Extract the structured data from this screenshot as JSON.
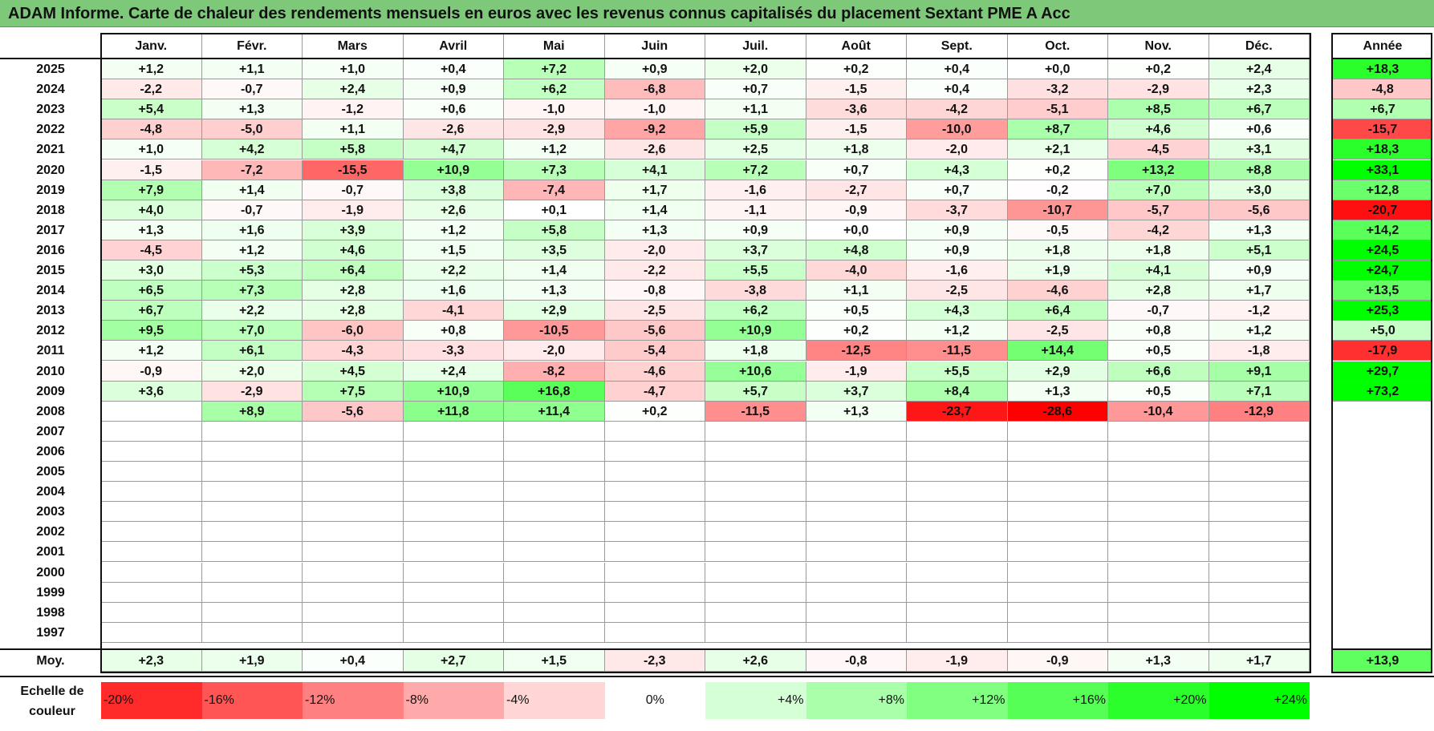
{
  "title": "ADAM Informe. Carte de chaleur des rendements mensuels en euros avec les revenus connus capitalisés du placement Sextant PME A Acc",
  "chart_data": {
    "type": "heatmap",
    "title": "ADAM Informe. Carte de chaleur des rendements mensuels en euros avec les revenus connus capitalisés du placement Sextant PME A Acc",
    "months": [
      "Janv.",
      "Févr.",
      "Mars",
      "Avril",
      "Mai",
      "Juin",
      "Juil.",
      "Août",
      "Sept.",
      "Oct.",
      "Nov.",
      "Déc."
    ],
    "annual_header": "Année",
    "years": [
      "2025",
      "2024",
      "2023",
      "2022",
      "2021",
      "2020",
      "2019",
      "2018",
      "2017",
      "2016",
      "2015",
      "2014",
      "2013",
      "2012",
      "2011",
      "2010",
      "2009",
      "2008",
      "2007",
      "2006",
      "2005",
      "2004",
      "2003",
      "2002",
      "2001",
      "2000",
      "1999",
      "1998",
      "1997"
    ],
    "values": [
      [
        "+1,2",
        "+1,1",
        "+1,0",
        "+0,4",
        "+7,2",
        "+0,9",
        "+2,0",
        "+0,2",
        "+0,4",
        "+0,0",
        "+0,2",
        "+2,4"
      ],
      [
        "-2,2",
        "-0,7",
        "+2,4",
        "+0,9",
        "+6,2",
        "-6,8",
        "+0,7",
        "-1,5",
        "+0,4",
        "-3,2",
        "-2,9",
        "+2,3"
      ],
      [
        "+5,4",
        "+1,3",
        "-1,2",
        "+0,6",
        "-1,0",
        "-1,0",
        "+1,1",
        "-3,6",
        "-4,2",
        "-5,1",
        "+8,5",
        "+6,7"
      ],
      [
        "-4,8",
        "-5,0",
        "+1,1",
        "-2,6",
        "-2,9",
        "-9,2",
        "+5,9",
        "-1,5",
        "-10,0",
        "+8,7",
        "+4,6",
        "+0,6"
      ],
      [
        "+1,0",
        "+4,2",
        "+5,8",
        "+4,7",
        "+1,2",
        "-2,6",
        "+2,5",
        "+1,8",
        "-2,0",
        "+2,1",
        "-4,5",
        "+3,1"
      ],
      [
        "-1,5",
        "-7,2",
        "-15,5",
        "+10,9",
        "+7,3",
        "+4,1",
        "+7,2",
        "+0,7",
        "+4,3",
        "+0,2",
        "+13,2",
        "+8,8"
      ],
      [
        "+7,9",
        "+1,4",
        "-0,7",
        "+3,8",
        "-7,4",
        "+1,7",
        "-1,6",
        "-2,7",
        "+0,7",
        "-0,2",
        "+7,0",
        "+3,0"
      ],
      [
        "+4,0",
        "-0,7",
        "-1,9",
        "+2,6",
        "+0,1",
        "+1,4",
        "-1,1",
        "-0,9",
        "-3,7",
        "-10,7",
        "-5,7",
        "-5,6"
      ],
      [
        "+1,3",
        "+1,6",
        "+3,9",
        "+1,2",
        "+5,8",
        "+1,3",
        "+0,9",
        "+0,0",
        "+0,9",
        "-0,5",
        "-4,2",
        "+1,3"
      ],
      [
        "-4,5",
        "+1,2",
        "+4,6",
        "+1,5",
        "+3,5",
        "-2,0",
        "+3,7",
        "+4,8",
        "+0,9",
        "+1,8",
        "+1,8",
        "+5,1"
      ],
      [
        "+3,0",
        "+5,3",
        "+6,4",
        "+2,2",
        "+1,4",
        "-2,2",
        "+5,5",
        "-4,0",
        "-1,6",
        "+1,9",
        "+4,1",
        "+0,9"
      ],
      [
        "+6,5",
        "+7,3",
        "+2,8",
        "+1,6",
        "+1,3",
        "-0,8",
        "-3,8",
        "+1,1",
        "-2,5",
        "-4,6",
        "+2,8",
        "+1,7"
      ],
      [
        "+6,7",
        "+2,2",
        "+2,8",
        "-4,1",
        "+2,9",
        "-2,5",
        "+6,2",
        "+0,5",
        "+4,3",
        "+6,4",
        "-0,7",
        "-1,2"
      ],
      [
        "+9,5",
        "+7,0",
        "-6,0",
        "+0,8",
        "-10,5",
        "-5,6",
        "+10,9",
        "+0,2",
        "+1,2",
        "-2,5",
        "+0,8",
        "+1,2"
      ],
      [
        "+1,2",
        "+6,1",
        "-4,3",
        "-3,3",
        "-2,0",
        "-5,4",
        "+1,8",
        "-12,5",
        "-11,5",
        "+14,4",
        "+0,5",
        "-1,8"
      ],
      [
        "-0,9",
        "+2,0",
        "+4,5",
        "+2,4",
        "-8,2",
        "-4,6",
        "+10,6",
        "-1,9",
        "+5,5",
        "+2,9",
        "+6,6",
        "+9,1"
      ],
      [
        "+3,6",
        "-2,9",
        "+7,5",
        "+10,9",
        "+16,8",
        "-4,7",
        "+5,7",
        "+3,7",
        "+8,4",
        "+1,3",
        "+0,5",
        "+7,1"
      ],
      [
        "",
        "+8,9",
        "-5,6",
        "+11,8",
        "+11,4",
        "+0,2",
        "-11,5",
        "+1,3",
        "-23,7",
        "-28,6",
        "-10,4",
        "-12,9"
      ],
      [
        "",
        "",
        "",
        "",
        "",
        "",
        "",
        "",
        "",
        "",
        "",
        ""
      ],
      [
        "",
        "",
        "",
        "",
        "",
        "",
        "",
        "",
        "",
        "",
        "",
        ""
      ],
      [
        "",
        "",
        "",
        "",
        "",
        "",
        "",
        "",
        "",
        "",
        "",
        ""
      ],
      [
        "",
        "",
        "",
        "",
        "",
        "",
        "",
        "",
        "",
        "",
        "",
        ""
      ],
      [
        "",
        "",
        "",
        "",
        "",
        "",
        "",
        "",
        "",
        "",
        "",
        ""
      ],
      [
        "",
        "",
        "",
        "",
        "",
        "",
        "",
        "",
        "",
        "",
        "",
        ""
      ],
      [
        "",
        "",
        "",
        "",
        "",
        "",
        "",
        "",
        "",
        "",
        "",
        ""
      ],
      [
        "",
        "",
        "",
        "",
        "",
        "",
        "",
        "",
        "",
        "",
        "",
        ""
      ],
      [
        "",
        "",
        "",
        "",
        "",
        "",
        "",
        "",
        "",
        "",
        "",
        ""
      ],
      [
        "",
        "",
        "",
        "",
        "",
        "",
        "",
        "",
        "",
        "",
        "",
        ""
      ],
      [
        "",
        "",
        "",
        "",
        "",
        "",
        "",
        "",
        "",
        "",
        "",
        ""
      ]
    ],
    "annual": [
      "+18,3",
      "-4,8",
      "+6,7",
      "-15,7",
      "+18,3",
      "+33,1",
      "+12,8",
      "-20,7",
      "+14,2",
      "+24,5",
      "+24,7",
      "+13,5",
      "+25,3",
      "+5,0",
      "-17,9",
      "+29,7",
      "+73,2",
      "",
      "",
      "",
      "",
      "",
      "",
      "",
      "",
      "",
      "",
      "",
      ""
    ],
    "average_label": "Moy.",
    "average": [
      "+2,3",
      "+1,9",
      "+0,4",
      "+2,7",
      "+1,5",
      "-2,3",
      "+2,6",
      "-0,8",
      "-1,9",
      "-0,9",
      "+1,3",
      "+1,7"
    ],
    "average_annual": "+13,9",
    "color_scale": {
      "label": "Echelle de couleur",
      "stops": [
        "-20%",
        "-16%",
        "-12%",
        "-8%",
        "-4%",
        "0%",
        "+4%",
        "+8%",
        "+12%",
        "+16%",
        "+20%",
        "+24%"
      ],
      "stop_values": [
        -20,
        -16,
        -12,
        -8,
        -4,
        0,
        4,
        8,
        12,
        16,
        20,
        24
      ],
      "negative_color": "#ff0000",
      "zero_color": "#ffffff",
      "positive_color": "#00ff00"
    }
  }
}
